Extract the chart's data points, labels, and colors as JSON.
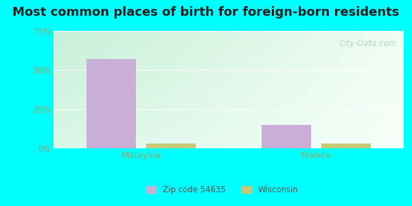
{
  "title": "Most common places of birth for foreign-born residents",
  "categories": [
    "Malaysia",
    "France"
  ],
  "zip_values": [
    57,
    15
  ],
  "wi_values": [
    3,
    3
  ],
  "zip_color": "#c9aed6",
  "wi_color": "#c8c87a",
  "ylim": [
    0,
    75
  ],
  "yticks": [
    0,
    25,
    50,
    75
  ],
  "yticklabels": [
    "0%",
    "25%",
    "50%",
    "75%"
  ],
  "legend_zip": "Zip code 54635",
  "legend_wi": "Wisconsin",
  "bar_width": 0.28,
  "outer_bg_color": "#00ffff",
  "plot_bg_tl": "#c8f0d8",
  "plot_bg_tr": "#f0f8f0",
  "plot_bg_br": "#ffffff",
  "title_fontsize": 13,
  "tick_color": "#8aaa66",
  "label_color": "#8aaa66",
  "watermark": "City-Data.com",
  "watermark_color": "#aacccc"
}
